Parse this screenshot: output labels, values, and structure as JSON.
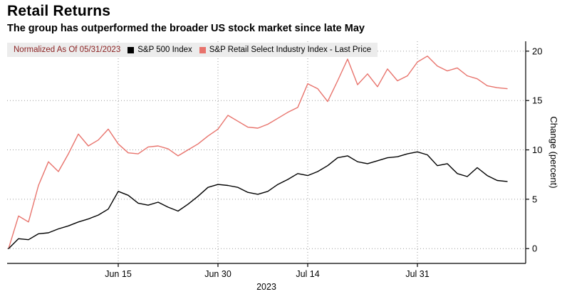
{
  "header": {
    "title": "Retail Returns",
    "subtitle": "The group has outperformed the broader US stock market since late May"
  },
  "legend": {
    "normalized_label": "Normalized As Of 05/31/2023",
    "note_color": "#8a1f1f",
    "background": "#ececec",
    "series": [
      {
        "label": "S&P 500 Index",
        "color": "#000000"
      },
      {
        "label": "S&P Retail Select Industry Index - Last Price",
        "color": "#e8736c"
      }
    ]
  },
  "chart_data": {
    "type": "line",
    "x_dates": [
      "05/31",
      "06/01",
      "06/02",
      "06/05",
      "06/06",
      "06/07",
      "06/08",
      "06/09",
      "06/12",
      "06/13",
      "06/14",
      "06/15",
      "06/16",
      "06/20",
      "06/21",
      "06/22",
      "06/23",
      "06/26",
      "06/27",
      "06/28",
      "06/29",
      "06/30",
      "07/03",
      "07/05",
      "07/06",
      "07/07",
      "07/10",
      "07/11",
      "07/12",
      "07/13",
      "07/14",
      "07/17",
      "07/18",
      "07/19",
      "07/20",
      "07/21",
      "07/24",
      "07/25",
      "07/26",
      "07/27",
      "07/28",
      "07/31",
      "08/01",
      "08/02",
      "08/03",
      "08/04",
      "08/07",
      "08/08",
      "08/09",
      "08/10",
      "08/11"
    ],
    "series": [
      {
        "name": "S&P 500 Index",
        "color": "#000000",
        "values": [
          0,
          1.0,
          0.9,
          1.5,
          1.6,
          2.0,
          2.3,
          2.7,
          3.0,
          3.4,
          4.0,
          5.8,
          5.4,
          4.6,
          4.4,
          4.7,
          4.2,
          3.8,
          4.5,
          5.3,
          6.2,
          6.5,
          6.4,
          6.2,
          5.7,
          5.5,
          5.8,
          6.5,
          7.0,
          7.6,
          7.4,
          7.8,
          8.4,
          9.2,
          9.4,
          8.8,
          8.6,
          8.9,
          9.2,
          9.3,
          9.6,
          9.8,
          9.5,
          8.4,
          8.6,
          7.6,
          7.3,
          8.2,
          7.4,
          6.9,
          6.8
        ]
      },
      {
        "name": "S&P Retail Select Industry Index - Last Price",
        "color": "#e8736c",
        "values": [
          0,
          3.3,
          2.7,
          6.4,
          8.8,
          7.8,
          9.6,
          11.6,
          10.4,
          11.0,
          12.1,
          10.6,
          9.7,
          9.6,
          10.3,
          10.4,
          10.1,
          9.4,
          10.0,
          10.6,
          11.4,
          12.1,
          13.5,
          12.9,
          12.3,
          12.2,
          12.6,
          13.2,
          13.8,
          14.3,
          16.7,
          16.2,
          14.9,
          17.0,
          19.2,
          16.6,
          17.7,
          16.4,
          18.2,
          17.0,
          17.5,
          18.9,
          19.5,
          18.5,
          18.0,
          18.3,
          17.5,
          17.2,
          16.5,
          16.3,
          16.2
        ]
      }
    ],
    "title": "Retail Returns",
    "xlabel": "",
    "ylabel": "Change (percent)",
    "y_ticks": [
      0,
      5,
      10,
      15,
      20
    ],
    "ylim": [
      -1.5,
      21
    ],
    "x_ticks": [
      {
        "label": "Jun 15",
        "index": 11
      },
      {
        "label": "Jun 30",
        "index": 21
      },
      {
        "label": "Jul 14",
        "index": 30
      },
      {
        "label": "Jul 31",
        "index": 41
      }
    ],
    "x_axis_year": "2023",
    "grid": "dotted",
    "legend_position": "top-left"
  }
}
